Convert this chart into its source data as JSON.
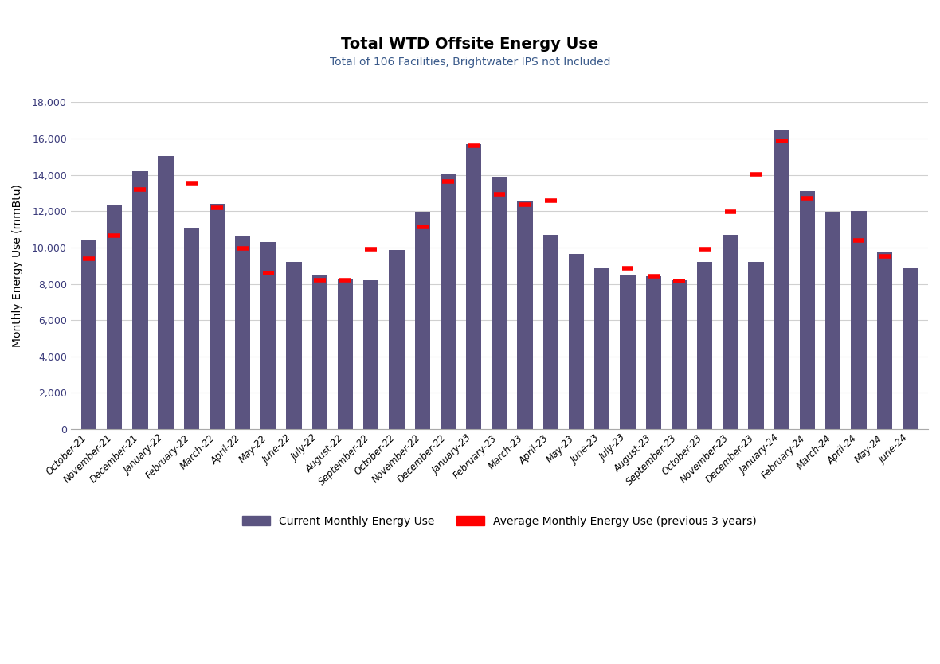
{
  "title": "Total WTD Offsite Energy Use",
  "subtitle": "Total of 106 Facilities, Brightwater IPS not Included",
  "ylabel": "Monthly Energy Use (mmBtu)",
  "bar_color": "#5b5480",
  "line_color": "#ff0000",
  "background_color": "#ffffff",
  "subtitle_color": "#3a5a8a",
  "categories": [
    "October-21",
    "November-21",
    "December-21",
    "January-22",
    "February-22",
    "March-22",
    "April-22",
    "May-22",
    "June-22",
    "July-22",
    "August-22",
    "September-22",
    "October-22",
    "November-22",
    "December-22",
    "January-23",
    "February-23",
    "March-23",
    "April-23",
    "May-23",
    "June-23",
    "July-23",
    "August-23",
    "September-23",
    "October-23",
    "November-23",
    "December-23",
    "January-24",
    "February-24",
    "March-24",
    "April-24",
    "May-24",
    "June-24"
  ],
  "bar_values": [
    10450,
    12300,
    14200,
    15050,
    11100,
    12400,
    10600,
    10300,
    9200,
    8500,
    8300,
    8200,
    9850,
    11950,
    14050,
    15700,
    13900,
    12550,
    10700,
    9650,
    8900,
    8500,
    8400,
    8200,
    9200,
    10700,
    9200,
    16500,
    13100,
    11950,
    12000,
    9750,
    8850
  ],
  "avg_values": [
    9400,
    10650,
    13200,
    null,
    13550,
    12200,
    9950,
    8600,
    null,
    8200,
    8200,
    9900,
    null,
    11150,
    13650,
    15600,
    12950,
    12350,
    12600,
    null,
    null,
    8850,
    8400,
    8150,
    9900,
    11950,
    14050,
    15850,
    12700,
    null,
    10400,
    9500,
    null
  ],
  "ylim": [
    0,
    18000
  ],
  "yticks": [
    0,
    2000,
    4000,
    6000,
    8000,
    10000,
    12000,
    14000,
    16000,
    18000
  ],
  "legend_bar_label": "Current Monthly Energy Use",
  "legend_line_label": "Average Monthly Energy Use (previous 3 years)"
}
